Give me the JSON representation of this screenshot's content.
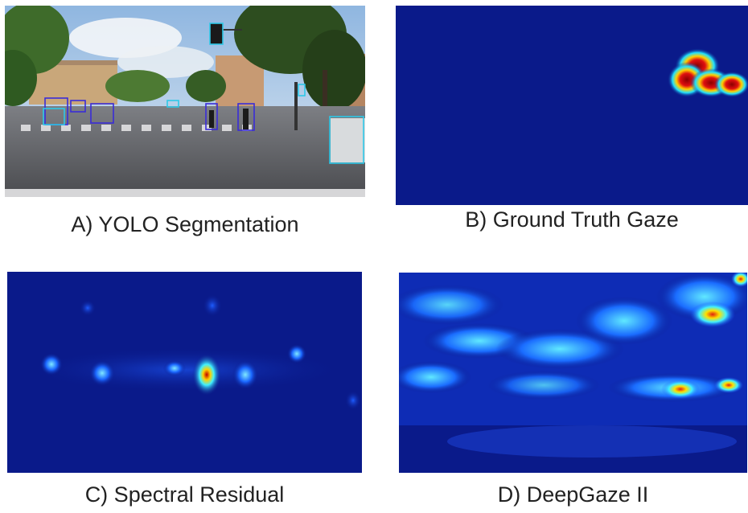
{
  "panels": {
    "a": {
      "caption": "A) YOLO Segmentation"
    },
    "b": {
      "caption": "B) Ground Truth Gaze"
    },
    "c": {
      "caption": "C) Spectral Residual"
    },
    "d": {
      "caption": "D) DeepGaze II"
    }
  },
  "colors": {
    "heatmap_background": "#0a1a8a",
    "yolo_box_person": "#3a2cd8",
    "yolo_box_vehicle": "#2ec8e8"
  }
}
